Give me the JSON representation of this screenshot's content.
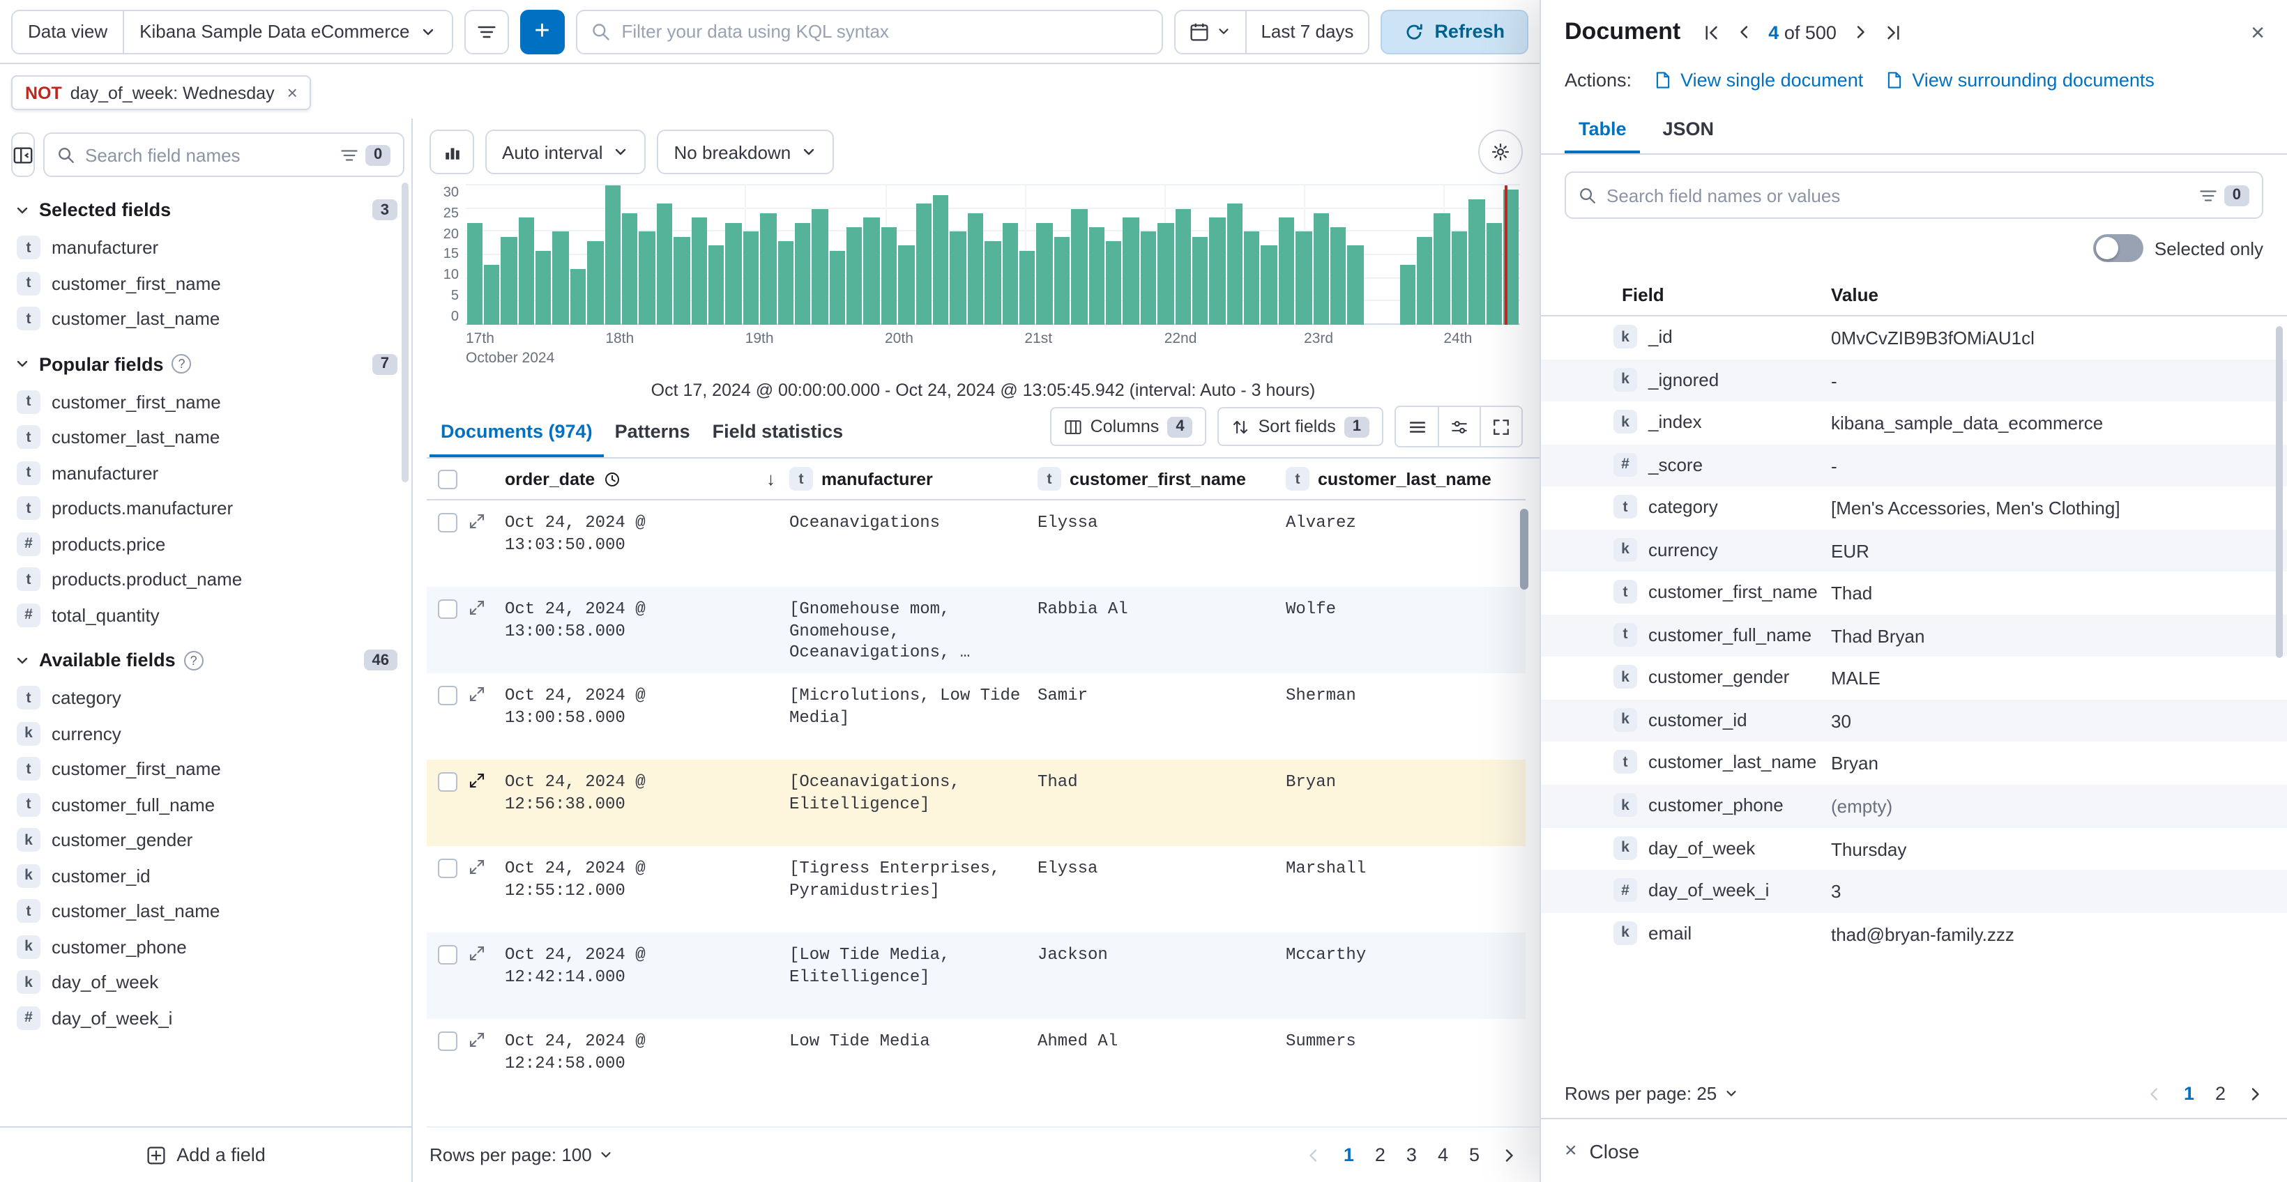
{
  "topbar": {
    "data_view_label": "Data view",
    "data_view_value": "Kibana Sample Data eCommerce",
    "kql_placeholder": "Filter your data using KQL syntax",
    "time_range": "Last 7 days",
    "refresh_label": "Refresh"
  },
  "filter_pill": {
    "negate": "NOT",
    "text": "day_of_week: Wednesday"
  },
  "sidebar": {
    "search_placeholder": "Search field names",
    "filter_count": "0",
    "add_field_label": "Add a field",
    "sections": [
      {
        "label": "Selected fields",
        "count": "3",
        "has_help": false,
        "fields": [
          {
            "type": "t",
            "name": "manufacturer"
          },
          {
            "type": "t",
            "name": "customer_first_name"
          },
          {
            "type": "t",
            "name": "customer_last_name"
          }
        ]
      },
      {
        "label": "Popular fields",
        "count": "7",
        "has_help": true,
        "fields": [
          {
            "type": "t",
            "name": "customer_first_name"
          },
          {
            "type": "t",
            "name": "customer_last_name"
          },
          {
            "type": "t",
            "name": "manufacturer"
          },
          {
            "type": "t",
            "name": "products.manufacturer"
          },
          {
            "type": "#",
            "name": "products.price"
          },
          {
            "type": "t",
            "name": "products.product_name"
          },
          {
            "type": "#",
            "name": "total_quantity"
          }
        ]
      },
      {
        "label": "Available fields",
        "count": "46",
        "has_help": true,
        "fields": [
          {
            "type": "t",
            "name": "category"
          },
          {
            "type": "k",
            "name": "currency"
          },
          {
            "type": "t",
            "name": "customer_first_name"
          },
          {
            "type": "t",
            "name": "customer_full_name"
          },
          {
            "type": "k",
            "name": "customer_gender"
          },
          {
            "type": "k",
            "name": "customer_id"
          },
          {
            "type": "t",
            "name": "customer_last_name"
          },
          {
            "type": "k",
            "name": "customer_phone"
          },
          {
            "type": "k",
            "name": "day_of_week"
          },
          {
            "type": "#",
            "name": "day_of_week_i"
          }
        ]
      }
    ]
  },
  "chart": {
    "interval_label": "Auto interval",
    "breakdown_label": "No breakdown",
    "caption": "Oct 17, 2024 @ 00:00:00.000 - Oct 24, 2024 @ 13:05:45.942 (interval: Auto - 3 hours)",
    "bar_color": "#54b399",
    "ymax": 30,
    "now_line_pos": 98.6,
    "y_ticks": [
      "30",
      "25",
      "20",
      "15",
      "10",
      "5",
      "0"
    ],
    "x_ticks": [
      {
        "label": "17th",
        "sub": "October 2024",
        "pos": 0
      },
      {
        "label": "18th",
        "pos": 13.25
      },
      {
        "label": "19th",
        "pos": 26.5
      },
      {
        "label": "20th",
        "pos": 39.75
      },
      {
        "label": "21st",
        "pos": 53
      },
      {
        "label": "22nd",
        "pos": 66.25
      },
      {
        "label": "23rd",
        "pos": 79.5
      },
      {
        "label": "24th",
        "pos": 92.75
      }
    ],
    "values": [
      22,
      13,
      19,
      23,
      16,
      20,
      12,
      18,
      30,
      24,
      20,
      26,
      19,
      23,
      17,
      22,
      20,
      24,
      18,
      22,
      25,
      16,
      21,
      23,
      21,
      17,
      26,
      28,
      20,
      24,
      18,
      22,
      16,
      22,
      19,
      25,
      21,
      18,
      23,
      20,
      22,
      25,
      19,
      23,
      26,
      20,
      17,
      23,
      20,
      24,
      21,
      17,
      0,
      0,
      13,
      19,
      24,
      20,
      27,
      22,
      29
    ]
  },
  "tabs": [
    {
      "label": "Documents (974)",
      "active": true
    },
    {
      "label": "Patterns",
      "active": false
    },
    {
      "label": "Field statistics",
      "active": false
    }
  ],
  "toolbar": {
    "columns_label": "Columns",
    "columns_count": "4",
    "sort_label": "Sort fields",
    "sort_count": "1"
  },
  "doc_table": {
    "columns": [
      "order_date",
      "manufacturer",
      "customer_first_name",
      "customer_last_name"
    ],
    "rows": [
      {
        "order_date": "Oct 24, 2024 @ 13:03:50.000",
        "manufacturer": "Oceanavigations",
        "customer_first_name": "Elyssa",
        "customer_last_name": "Alvarez",
        "active": false
      },
      {
        "order_date": "Oct 24, 2024 @ 13:00:58.000",
        "manufacturer": "[Gnomehouse mom, Gnomehouse, Oceanavigations, …",
        "customer_first_name": "Rabbia Al",
        "customer_last_name": "Wolfe",
        "active": false
      },
      {
        "order_date": "Oct 24, 2024 @ 13:00:58.000",
        "manufacturer": "[Microlutions, Low Tide Media]",
        "customer_first_name": "Samir",
        "customer_last_name": "Sherman",
        "active": false
      },
      {
        "order_date": "Oct 24, 2024 @ 12:56:38.000",
        "manufacturer": "[Oceanavigations, Elitelligence]",
        "customer_first_name": "Thad",
        "customer_last_name": "Bryan",
        "active": true
      },
      {
        "order_date": "Oct 24, 2024 @ 12:55:12.000",
        "manufacturer": "[Tigress Enterprises, Pyramidustries]",
        "customer_first_name": "Elyssa",
        "customer_last_name": "Marshall",
        "active": false
      },
      {
        "order_date": "Oct 24, 2024 @ 12:42:14.000",
        "manufacturer": "[Low Tide Media, Elitelligence]",
        "customer_first_name": "Jackson",
        "customer_last_name": "Mccarthy",
        "active": false
      },
      {
        "order_date": "Oct 24, 2024 @ 12:24:58.000",
        "manufacturer": "Low Tide Media",
        "customer_first_name": "Ahmed Al",
        "customer_last_name": "Summers",
        "active": false
      }
    ],
    "rows_per_page": "Rows per page: 100",
    "pages": [
      "1",
      "2",
      "3",
      "4",
      "5"
    ],
    "active_page": "1"
  },
  "flyout": {
    "title": "Document",
    "nav": {
      "current": "4",
      "of_label": "of",
      "total": "500"
    },
    "actions_label": "Actions:",
    "actions": [
      {
        "label": "View single document"
      },
      {
        "label": "View surrounding documents"
      }
    ],
    "tabs": [
      {
        "label": "Table",
        "active": true
      },
      {
        "label": "JSON",
        "active": false
      }
    ],
    "search_placeholder": "Search field names or values",
    "filter_count": "0",
    "selected_only_label": "Selected only",
    "table": {
      "field_header": "Field",
      "value_header": "Value",
      "rows": [
        {
          "type": "k",
          "field": "_id",
          "value": "0MvCvZIB9B3fOMiAU1cl",
          "empty": false
        },
        {
          "type": "k",
          "field": "_ignored",
          "value": "-",
          "empty": false
        },
        {
          "type": "k",
          "field": "_index",
          "value": "kibana_sample_data_ecommerce",
          "empty": false
        },
        {
          "type": "#",
          "field": "_score",
          "value": "-",
          "empty": false
        },
        {
          "type": "t",
          "field": "category",
          "value": "[Men's Accessories, Men's Clothing]",
          "empty": false
        },
        {
          "type": "k",
          "field": "currency",
          "value": "EUR",
          "empty": false
        },
        {
          "type": "t",
          "field": "customer_first_name",
          "value": "Thad",
          "empty": false
        },
        {
          "type": "t",
          "field": "customer_full_name",
          "value": "Thad Bryan",
          "empty": false
        },
        {
          "type": "k",
          "field": "customer_gender",
          "value": "MALE",
          "empty": false
        },
        {
          "type": "k",
          "field": "customer_id",
          "value": "30",
          "empty": false
        },
        {
          "type": "t",
          "field": "customer_last_name",
          "value": "Bryan",
          "empty": false
        },
        {
          "type": "k",
          "field": "customer_phone",
          "value": "(empty)",
          "empty": true
        },
        {
          "type": "k",
          "field": "day_of_week",
          "value": "Thursday",
          "empty": false
        },
        {
          "type": "#",
          "field": "day_of_week_i",
          "value": "3",
          "empty": false
        },
        {
          "type": "k",
          "field": "email",
          "value": "thad@bryan-family.zzz",
          "empty": false
        }
      ]
    },
    "rows_per_page": "Rows per page: 25",
    "pages": [
      "1",
      "2"
    ],
    "active_page": "1",
    "close_label": "Close"
  }
}
